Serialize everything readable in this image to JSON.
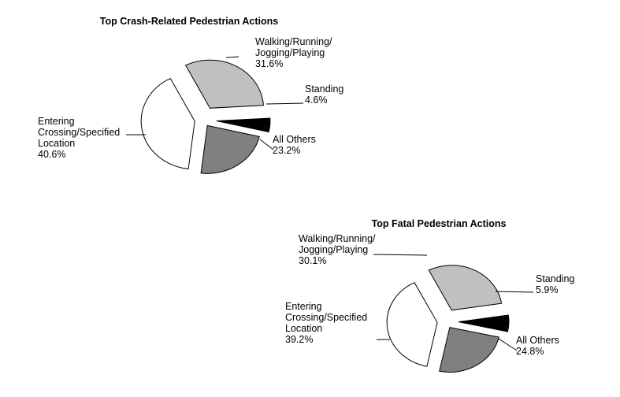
{
  "chart_data": [
    {
      "type": "pie",
      "title": "Top Crash-Related Pedestrian Actions",
      "categories": [
        "Walking/Running/ Jogging/Playing",
        "Standing",
        "All Others",
        "Entering Crossing/Specified Location"
      ],
      "values": [
        31.6,
        4.6,
        23.2,
        40.6
      ],
      "label_lines": [
        [
          "Walking/Running/",
          "Jogging/Playing",
          "31.6%"
        ],
        [
          "Standing",
          "4.6%"
        ],
        [
          "All Others",
          "23.2%"
        ],
        [
          "Entering",
          "Crossing/Specified",
          "Location",
          "40.6%"
        ]
      ],
      "colors": [
        "#c0c0c0",
        "#000000",
        "#808080",
        "#ffffff"
      ],
      "exploded": true,
      "legend": "none"
    },
    {
      "type": "pie",
      "title": "Top Fatal Pedestrian Actions",
      "categories": [
        "Walking/Running/ Jogging/Playing",
        "Standing",
        "All Others",
        "Entering Crossing/Specified Location"
      ],
      "values": [
        30.1,
        5.9,
        24.8,
        39.2
      ],
      "label_lines": [
        [
          "Walking/Running/",
          "Jogging/Playing",
          "30.1%"
        ],
        [
          "Standing",
          "5.9%"
        ],
        [
          "All Others",
          "24.8%"
        ],
        [
          "Entering",
          "Crossing/Specified",
          "Location",
          "39.2%"
        ]
      ],
      "colors": [
        "#c0c0c0",
        "#000000",
        "#808080",
        "#ffffff"
      ],
      "exploded": true,
      "legend": "none"
    }
  ]
}
